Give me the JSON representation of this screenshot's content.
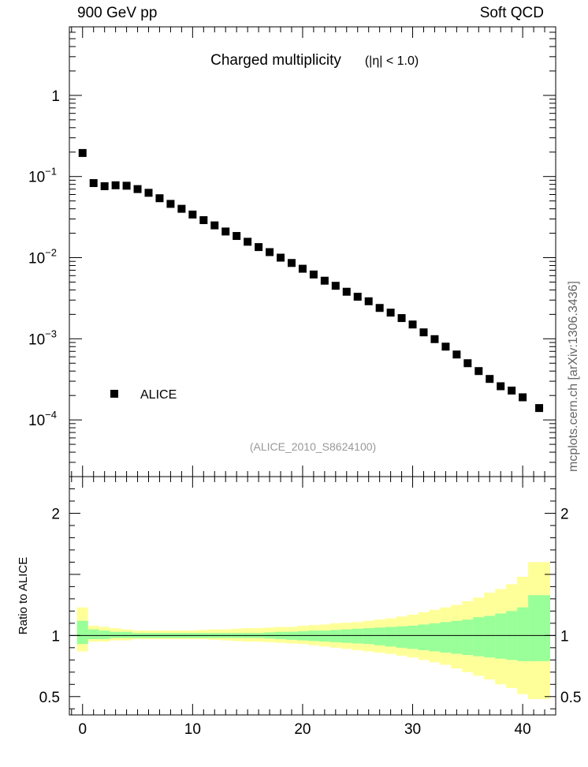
{
  "header": {
    "left": "900 GeV pp",
    "right": "Soft QCD"
  },
  "side_label": "mcplots.cern.ch [arXiv:1306.3436]",
  "chart_data": [
    {
      "type": "scatter",
      "title": "Charged multiplicity",
      "title_suffix": "(|η| < 1.0)",
      "subtitle": "(ALICE_2010_S8624100)",
      "yscale": "log",
      "ylim": [
        2e-05,
        7
      ],
      "xlim": [
        -1.2,
        43
      ],
      "y_ticks": [
        {
          "value": 1,
          "label": "1"
        },
        {
          "value": 0.1,
          "label": "10",
          "exp": "−1"
        },
        {
          "value": 0.01,
          "label": "10",
          "exp": "−2"
        },
        {
          "value": 0.001,
          "label": "10",
          "exp": "−3"
        },
        {
          "value": 0.0001,
          "label": "10",
          "exp": "−4"
        }
      ],
      "legend": {
        "entries": [
          "ALICE"
        ],
        "position": "bottom-left"
      },
      "series": [
        {
          "name": "ALICE",
          "marker": "square",
          "color": "#000000",
          "x": [
            0,
            1,
            2,
            3,
            4,
            5,
            6,
            7,
            8,
            9,
            10,
            11,
            12,
            13,
            14,
            15,
            16,
            17,
            18,
            19,
            20,
            21,
            22,
            23,
            24,
            25,
            26,
            27,
            28,
            29,
            30,
            31,
            32,
            33,
            34,
            35,
            36,
            37,
            38,
            39,
            40,
            41.5
          ],
          "y": [
            0.195,
            0.083,
            0.076,
            0.078,
            0.077,
            0.07,
            0.063,
            0.054,
            0.046,
            0.04,
            0.034,
            0.029,
            0.025,
            0.021,
            0.0185,
            0.0157,
            0.0135,
            0.0117,
            0.01,
            0.0086,
            0.0073,
            0.0062,
            0.0052,
            0.0045,
            0.0038,
            0.0033,
            0.0029,
            0.0024,
            0.0021,
            0.0018,
            0.0015,
            0.0012,
            0.00099,
            0.0008,
            0.00064,
            0.0005,
            0.0004,
            0.00032,
            0.00026,
            0.00023,
            0.00019,
            0.00014
          ]
        }
      ]
    },
    {
      "type": "area",
      "ylabel": "Ratio to ALICE",
      "ylim": [
        0.35,
        2.3
      ],
      "xlim": [
        -1.2,
        43
      ],
      "y_ticks": [
        0.5,
        1,
        2
      ],
      "x_ticks": [
        0,
        10,
        20,
        30,
        40
      ],
      "bands": [
        {
          "name": "total uncertainty",
          "color": "#ffff99",
          "edges": [
            -0.5,
            0.5,
            1.5,
            2.5,
            3.5,
            4.5,
            5.5,
            6.5,
            7.5,
            8.5,
            9.5,
            10.5,
            11.5,
            12.5,
            13.5,
            14.5,
            15.5,
            16.5,
            17.5,
            18.5,
            19.5,
            20.5,
            21.5,
            22.5,
            23.5,
            24.5,
            25.5,
            26.5,
            27.5,
            28.5,
            29.5,
            30.5,
            31.5,
            32.5,
            33.5,
            34.5,
            35.5,
            36.5,
            37.5,
            38.5,
            39.5,
            40.5,
            42.5
          ],
          "upper": [
            1.23,
            1.08,
            1.07,
            1.06,
            1.05,
            1.04,
            1.04,
            1.04,
            1.04,
            1.04,
            1.04,
            1.045,
            1.05,
            1.05,
            1.055,
            1.06,
            1.06,
            1.065,
            1.07,
            1.07,
            1.08,
            1.085,
            1.09,
            1.1,
            1.105,
            1.11,
            1.12,
            1.13,
            1.14,
            1.155,
            1.17,
            1.19,
            1.21,
            1.23,
            1.25,
            1.28,
            1.31,
            1.35,
            1.38,
            1.42,
            1.48,
            1.6
          ],
          "lower": [
            0.87,
            0.95,
            0.95,
            0.96,
            0.96,
            0.97,
            0.97,
            0.97,
            0.97,
            0.97,
            0.97,
            0.97,
            0.965,
            0.96,
            0.955,
            0.95,
            0.95,
            0.945,
            0.94,
            0.935,
            0.93,
            0.92,
            0.91,
            0.9,
            0.89,
            0.88,
            0.87,
            0.86,
            0.85,
            0.835,
            0.82,
            0.8,
            0.78,
            0.76,
            0.73,
            0.7,
            0.67,
            0.64,
            0.6,
            0.57,
            0.52,
            0.48
          ]
        },
        {
          "name": "statistical uncertainty",
          "color": "#99ff99",
          "edges": [
            -0.5,
            0.5,
            1.5,
            2.5,
            3.5,
            4.5,
            5.5,
            6.5,
            7.5,
            8.5,
            9.5,
            10.5,
            11.5,
            12.5,
            13.5,
            14.5,
            15.5,
            16.5,
            17.5,
            18.5,
            19.5,
            20.5,
            21.5,
            22.5,
            23.5,
            24.5,
            25.5,
            26.5,
            27.5,
            28.5,
            29.5,
            30.5,
            31.5,
            32.5,
            33.5,
            34.5,
            35.5,
            36.5,
            37.5,
            38.5,
            39.5,
            40.5,
            42.5
          ],
          "upper": [
            1.12,
            1.05,
            1.04,
            1.03,
            1.03,
            1.02,
            1.02,
            1.02,
            1.02,
            1.02,
            1.02,
            1.02,
            1.02,
            1.02,
            1.02,
            1.02,
            1.02,
            1.025,
            1.03,
            1.03,
            1.035,
            1.04,
            1.04,
            1.045,
            1.05,
            1.055,
            1.06,
            1.065,
            1.07,
            1.075,
            1.08,
            1.09,
            1.1,
            1.11,
            1.12,
            1.13,
            1.15,
            1.16,
            1.18,
            1.2,
            1.23,
            1.33
          ],
          "lower": [
            0.93,
            0.97,
            0.97,
            0.98,
            0.98,
            0.98,
            0.98,
            0.98,
            0.98,
            0.98,
            0.98,
            0.98,
            0.98,
            0.98,
            0.98,
            0.98,
            0.98,
            0.975,
            0.97,
            0.965,
            0.96,
            0.955,
            0.95,
            0.945,
            0.94,
            0.935,
            0.93,
            0.92,
            0.91,
            0.9,
            0.89,
            0.88,
            0.87,
            0.86,
            0.85,
            0.84,
            0.83,
            0.82,
            0.81,
            0.8,
            0.79,
            0.79
          ]
        }
      ],
      "reference_line": 1
    }
  ]
}
